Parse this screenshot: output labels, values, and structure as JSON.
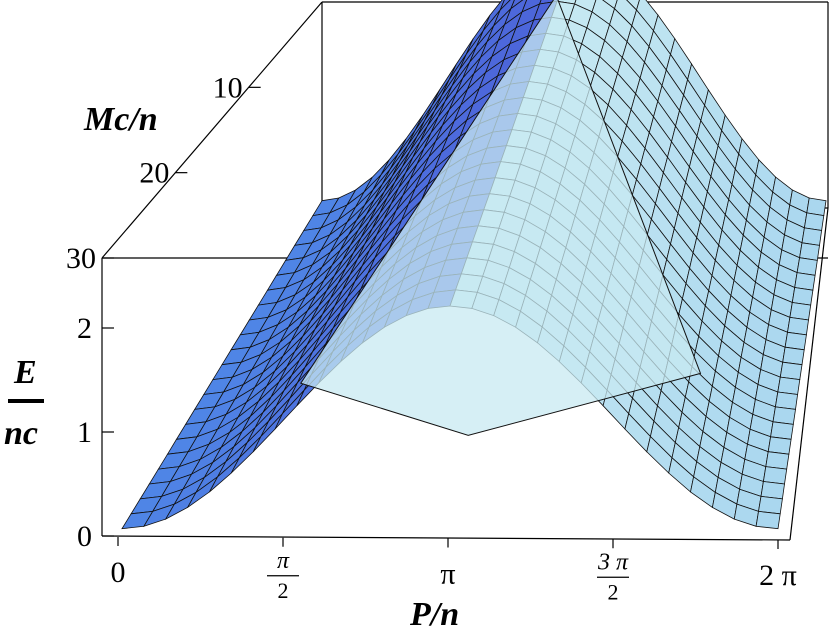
{
  "chart_data": {
    "type": "surface3d",
    "title": "",
    "x_axis": {
      "label": "P/n",
      "range": [
        0,
        6.2832
      ],
      "ticks": [
        {
          "value": 0,
          "label": "0"
        },
        {
          "value": 1.5708,
          "num": "π",
          "den": "2"
        },
        {
          "value": 3.1416,
          "label": "π"
        },
        {
          "value": 4.7124,
          "num": "3 π",
          "den": "2"
        },
        {
          "value": 6.2832,
          "label": "2 π"
        }
      ]
    },
    "y_axis": {
      "label": "Mc/n",
      "range": [
        0,
        30
      ],
      "ticks": [
        {
          "value": 10,
          "label": "10"
        },
        {
          "value": 20,
          "label": "20"
        },
        {
          "value": 30,
          "label": "30"
        }
      ]
    },
    "z_axis": {
      "label_top": "E",
      "label_bottom": "nc",
      "range": [
        0,
        2.6
      ],
      "ticks": [
        {
          "value": 0,
          "label": "0"
        },
        {
          "value": 1,
          "label": "1"
        },
        {
          "value": 2,
          "label": "2"
        }
      ]
    },
    "surface": {
      "description_of_shape": "E/nc rises from 0 at P/n=0 and 2π to a peak near P/n=π; folded swallowtail region near small Mc/n",
      "peak_value": 2.45,
      "peak_at_x": 3.1416,
      "edge_value": 0.07,
      "colors": {
        "dark": "#4a4ad0",
        "mid": "#4f86e6",
        "light": "#a9d6ef",
        "pale": "#c8eaf2"
      }
    },
    "grid": false
  }
}
